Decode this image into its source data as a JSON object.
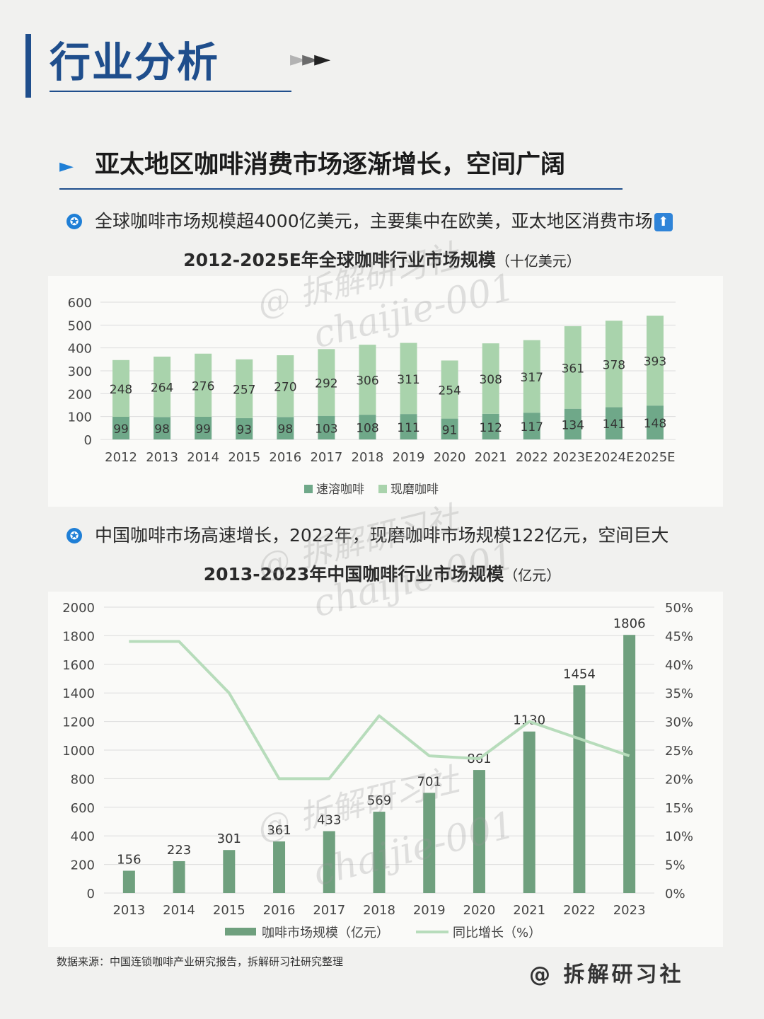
{
  "header": {
    "title": "行业分析",
    "arrows": [
      "►",
      "►",
      "►"
    ]
  },
  "section": {
    "arrow": "►",
    "heading": "亚太地区咖啡消费市场逐渐增长，空间广阔"
  },
  "bullets": [
    {
      "icon": "star-circle-icon",
      "text": "全球咖啡市场规模超4000亿美元，主要集中在欧美，亚太地区消费市场",
      "trailing_icon": "up-arrow-icon"
    },
    {
      "icon": "star-circle-icon",
      "text": "中国咖啡市场高速增长，2022年，现磨咖啡市场规模122亿元，空间巨大"
    }
  ],
  "chart_data": [
    {
      "type": "bar",
      "stacked": true,
      "title": "2012-2025E年全球咖啡行业市场规模",
      "unit": "（十亿美元）",
      "categories": [
        "2012",
        "2013",
        "2014",
        "2015",
        "2016",
        "2017",
        "2018",
        "2019",
        "2020",
        "2021",
        "2022",
        "2023E",
        "2024E",
        "2025E"
      ],
      "series": [
        {
          "name": "速溶咖啡",
          "color": "#6fa889",
          "values": [
            99,
            98,
            99,
            93,
            98,
            103,
            108,
            111,
            91,
            112,
            117,
            134,
            141,
            148
          ]
        },
        {
          "name": "现磨咖啡",
          "color": "#a9d3ac",
          "values": [
            248,
            264,
            276,
            257,
            270,
            292,
            306,
            311,
            254,
            308,
            317,
            361,
            378,
            393
          ]
        }
      ],
      "ylim": [
        0,
        600
      ],
      "yticks": [
        "0",
        "100",
        "200",
        "300",
        "400",
        "500",
        "600"
      ],
      "grid": true,
      "legend": "bottom"
    },
    {
      "type": "bar+line",
      "title": "2013-2023年中国咖啡行业市场规模",
      "unit": "（亿元）",
      "categories": [
        "2013",
        "2014",
        "2015",
        "2016",
        "2017",
        "2018",
        "2019",
        "2020",
        "2021",
        "2022",
        "2023"
      ],
      "series": [
        {
          "name": "咖啡市场规模（亿元）",
          "type": "bar",
          "axis": "left",
          "color": "#6fa07e",
          "values": [
            156,
            223,
            301,
            361,
            433,
            569,
            701,
            861,
            1130,
            1454,
            1806
          ]
        },
        {
          "name": "同比增长（%）",
          "type": "line",
          "axis": "right",
          "color": "#b7dcbb",
          "values": [
            44,
            44,
            35,
            20,
            20,
            31,
            24,
            23.5,
            30,
            27,
            24
          ]
        }
      ],
      "ylim_left": [
        0,
        2000
      ],
      "yticks_left": [
        "0",
        "200",
        "400",
        "600",
        "800",
        "1000",
        "1200",
        "1400",
        "1600",
        "1800",
        "2000"
      ],
      "ylim_right": [
        0,
        50
      ],
      "yticks_right": [
        "0%",
        "5%",
        "10%",
        "15%",
        "20%",
        "25%",
        "30%",
        "35%",
        "40%",
        "45%",
        "50%"
      ],
      "grid": true,
      "legend": "bottom"
    }
  ],
  "footer": {
    "source": "数据来源：中国连锁咖啡产业研究报告，拆解研习社研究整理",
    "brand": "@ 拆解研习社"
  },
  "watermarks": [
    "@ 拆解研习社",
    "chaijie-001"
  ]
}
